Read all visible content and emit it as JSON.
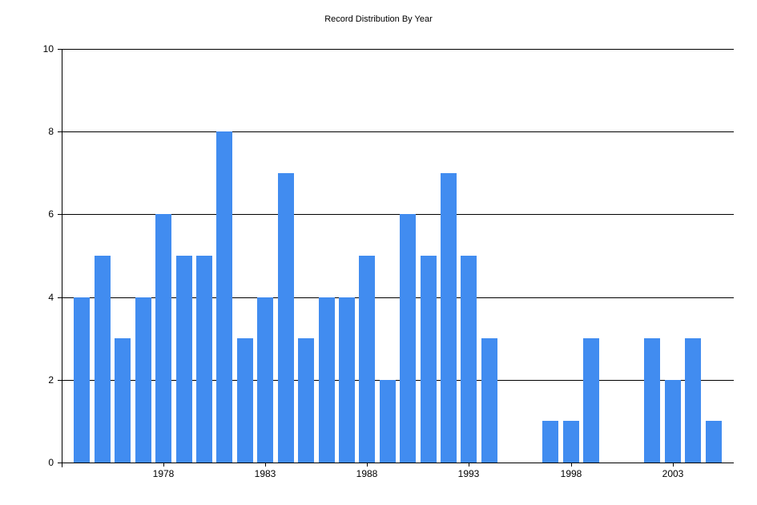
{
  "chart_data": {
    "type": "bar",
    "title": "Record Distribution By Year",
    "xlabel": "",
    "ylabel": "",
    "categories": [
      1974,
      1975,
      1976,
      1977,
      1978,
      1979,
      1980,
      1981,
      1982,
      1983,
      1984,
      1985,
      1986,
      1987,
      1988,
      1989,
      1990,
      1991,
      1992,
      1993,
      1994,
      1995,
      1996,
      1997,
      1998,
      1999,
      2000,
      2001,
      2002,
      2003,
      2004,
      2005
    ],
    "values": [
      4,
      5,
      3,
      4,
      6,
      5,
      5,
      8,
      3,
      4,
      7,
      3,
      4,
      4,
      5,
      2,
      6,
      5,
      7,
      5,
      3,
      0,
      0,
      1,
      1,
      3,
      0,
      0,
      3,
      2,
      3,
      1
    ],
    "ylim": [
      0,
      10
    ],
    "yticks": [
      0,
      2,
      4,
      6,
      8,
      10
    ],
    "xticks": [
      1978,
      1983,
      1988,
      1993,
      1998,
      2003
    ],
    "xlim": [
      1973,
      2006
    ],
    "grid": {
      "horizontal": true,
      "vertical": false
    },
    "legend": null,
    "bar_color": "#418CF0"
  }
}
